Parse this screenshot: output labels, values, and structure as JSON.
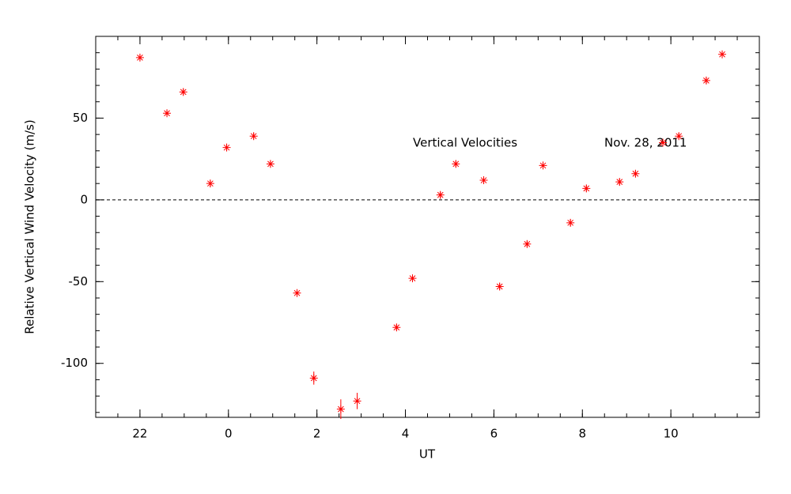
{
  "chart_data": {
    "type": "scatter",
    "x_label": "UT",
    "y_label": "Relative Vertical Wind Velocity (m/s)",
    "annotations": [
      "Vertical Velocities",
      "Nov. 28, 2011"
    ],
    "xlim": [
      -3,
      12
    ],
    "xticks": [
      {
        "value": -2,
        "label": "22"
      },
      0,
      2,
      4,
      6,
      8,
      10
    ],
    "ylim": [
      -133,
      100
    ],
    "yticks": [
      -100,
      -50,
      0,
      50
    ],
    "x_minor_step": 0.5,
    "y_minor_step": 10,
    "reference_line": 0,
    "series": [
      {
        "color": "#ff0000",
        "x": [
          -2.0,
          -1.39,
          -1.02,
          -0.41,
          -0.04,
          0.57,
          0.95,
          1.55,
          1.93,
          2.54,
          2.91,
          3.8,
          4.16,
          4.79,
          5.14,
          5.77,
          6.13,
          6.75,
          7.11,
          7.73,
          8.09,
          8.84,
          9.2,
          9.82,
          10.18,
          10.8,
          11.16
        ],
        "values": [
          87,
          53,
          66,
          10,
          32,
          39,
          22,
          -57,
          -109,
          -128,
          -123,
          -78,
          -48,
          3,
          22,
          12,
          -53,
          -27,
          21,
          -14,
          7,
          11,
          16,
          35,
          39,
          73,
          89
        ],
        "errors": [
          2,
          2,
          2,
          2,
          2,
          2,
          2,
          2,
          4,
          6,
          5,
          2,
          2,
          2,
          2,
          2,
          2,
          2,
          2,
          2,
          2,
          2,
          2,
          2,
          2,
          2,
          2
        ]
      }
    ]
  }
}
